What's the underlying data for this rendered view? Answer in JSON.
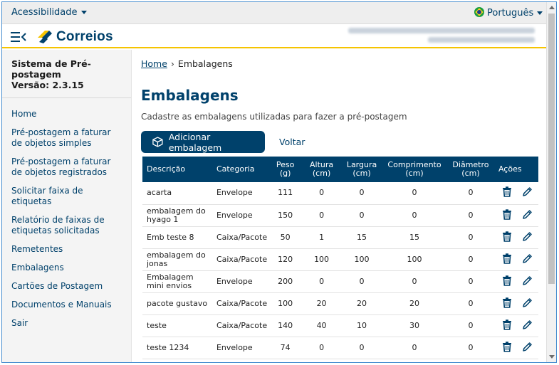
{
  "topbar": {
    "accessibility_label": "Acessibilidade",
    "language_label": "Português"
  },
  "header": {
    "logo_text": "Correios"
  },
  "sidebar": {
    "system_title": "Sistema de Pré-postagem",
    "version": "Versão: 2.3.15",
    "items": [
      {
        "label": "Home"
      },
      {
        "label": "Pré-postagem a faturar de objetos simples"
      },
      {
        "label": "Pré-postagem a faturar de objetos registrados"
      },
      {
        "label": "Solicitar faixa de etiquetas"
      },
      {
        "label": "Relatório de faixas de etiquetas solicitadas"
      },
      {
        "label": "Remetentes"
      },
      {
        "label": "Embalagens"
      },
      {
        "label": "Cartões de Postagem"
      },
      {
        "label": "Documentos e Manuais"
      },
      {
        "label": "Sair"
      }
    ]
  },
  "breadcrumb": {
    "home": "Home",
    "current": "Embalagens"
  },
  "main": {
    "title": "Embalagens",
    "subtitle": "Cadastre as embalagens utilizadas para fazer a pré-postagem",
    "add_button": "Adicionar embalagem",
    "back_link": "Voltar"
  },
  "table": {
    "headers": {
      "descricao": "Descrição",
      "categoria": "Categoria",
      "peso": "Peso (g)",
      "altura": "Altura (cm)",
      "largura": "Largura (cm)",
      "comprimento": "Comprimento (cm)",
      "diametro": "Diâmetro (cm)",
      "acoes": "Ações"
    },
    "rows": [
      {
        "descricao": "acarta",
        "categoria": "Envelope",
        "peso": "111",
        "altura": "0",
        "largura": "0",
        "comprimento": "0",
        "diametro": "0"
      },
      {
        "descricao": "embalagem do hyago 1",
        "categoria": "Envelope",
        "peso": "150",
        "altura": "0",
        "largura": "0",
        "comprimento": "0",
        "diametro": "0"
      },
      {
        "descricao": "Emb teste 8",
        "categoria": "Caixa/Pacote",
        "peso": "50",
        "altura": "1",
        "largura": "15",
        "comprimento": "15",
        "diametro": "0"
      },
      {
        "descricao": "embalagem do jonas",
        "categoria": "Caixa/Pacote",
        "peso": "120",
        "altura": "100",
        "largura": "100",
        "comprimento": "100",
        "diametro": "0"
      },
      {
        "descricao": "Embalagem mini envios",
        "categoria": "Envelope",
        "peso": "200",
        "altura": "0",
        "largura": "0",
        "comprimento": "0",
        "diametro": "0"
      },
      {
        "descricao": "pacote gustavo",
        "categoria": "Caixa/Pacote",
        "peso": "100",
        "altura": "20",
        "largura": "20",
        "comprimento": "20",
        "diametro": "0"
      },
      {
        "descricao": "teste",
        "categoria": "Caixa/Pacote",
        "peso": "140",
        "altura": "40",
        "largura": "10",
        "comprimento": "30",
        "diametro": "0"
      },
      {
        "descricao": "teste 1234",
        "categoria": "Envelope",
        "peso": "74",
        "altura": "0",
        "largura": "0",
        "comprimento": "0",
        "diametro": "0"
      }
    ]
  },
  "icons": {
    "delete": "trash-icon",
    "edit": "pencil-icon",
    "add": "box-icon",
    "menu": "menu-collapse-icon"
  },
  "colors": {
    "brand_blue": "#00416b",
    "brand_yellow": "#f5c400"
  }
}
